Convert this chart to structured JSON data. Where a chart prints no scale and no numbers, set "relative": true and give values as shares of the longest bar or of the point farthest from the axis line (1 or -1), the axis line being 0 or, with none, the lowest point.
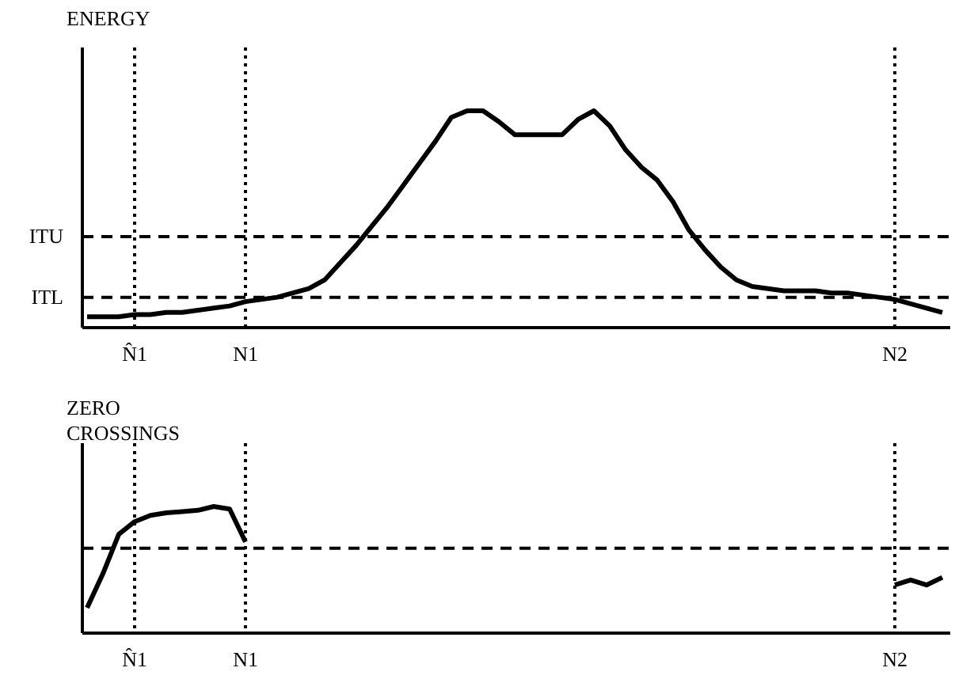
{
  "chart_data": [
    {
      "type": "line",
      "title": "ENERGY",
      "relative": true,
      "color": "#000000",
      "line_style": "solid",
      "marker": "none",
      "categories": [
        null,
        null,
        null,
        "N̂1",
        null,
        null,
        null,
        null,
        null,
        null,
        "N1",
        null,
        null,
        null,
        null,
        null,
        null,
        null,
        null,
        null,
        null,
        null,
        null,
        null,
        null,
        null,
        null,
        null,
        null,
        null,
        null,
        null,
        null,
        null,
        null,
        null,
        null,
        null,
        null,
        null,
        null,
        null,
        null,
        null,
        null,
        null,
        null,
        null,
        null,
        null,
        null,
        "N2",
        null,
        null,
        null
      ],
      "values": [
        0.05,
        0.05,
        0.05,
        0.06,
        0.06,
        0.07,
        0.07,
        0.08,
        0.09,
        0.1,
        0.12,
        0.13,
        0.14,
        0.16,
        0.18,
        0.22,
        0.3,
        0.38,
        0.47,
        0.56,
        0.66,
        0.76,
        0.86,
        0.97,
        1,
        1,
        0.95,
        0.89,
        0.89,
        0.89,
        0.89,
        0.96,
        1,
        0.93,
        0.82,
        0.74,
        0.68,
        0.58,
        0.45,
        0.36,
        0.28,
        0.22,
        0.19,
        0.18,
        0.17,
        0.17,
        0.17,
        0.16,
        0.16,
        0.15,
        0.14,
        0.13,
        0.11,
        0.09,
        0.07
      ],
      "ref_lines": [
        {
          "axis": "y",
          "value": 0.42,
          "label": "ITU",
          "line_style": "dashed"
        },
        {
          "axis": "y",
          "value": 0.14,
          "label": "ITL",
          "line_style": "dashed"
        },
        {
          "axis": "x",
          "value": "N̂1",
          "line_style": "dotted"
        },
        {
          "axis": "x",
          "value": "N1",
          "line_style": "dotted"
        },
        {
          "axis": "x",
          "value": "N2",
          "line_style": "dotted"
        }
      ]
    },
    {
      "type": "line",
      "title": "ZERO CROSSINGS",
      "relative": true,
      "color": "#000000",
      "line_style": "solid",
      "marker": "none",
      "categories": [
        null,
        null,
        null,
        "N̂1",
        null,
        null,
        null,
        null,
        null,
        null,
        "N1",
        null,
        null,
        null,
        null,
        null,
        null,
        null,
        null,
        null,
        null,
        null,
        null,
        null,
        null,
        null,
        null,
        null,
        null,
        null,
        null,
        null,
        null,
        null,
        null,
        null,
        null,
        null,
        null,
        null,
        null,
        null,
        null,
        null,
        null,
        null,
        null,
        null,
        null,
        null,
        null,
        "N2",
        null,
        null,
        null
      ],
      "values": [
        0.2,
        0.47,
        0.78,
        0.88,
        0.93,
        0.95,
        0.96,
        0.97,
        1,
        0.98,
        0.72,
        null,
        null,
        null,
        null,
        null,
        null,
        null,
        null,
        null,
        null,
        null,
        null,
        null,
        null,
        null,
        null,
        null,
        null,
        null,
        null,
        null,
        null,
        null,
        null,
        null,
        null,
        null,
        null,
        null,
        null,
        null,
        null,
        null,
        null,
        null,
        null,
        null,
        null,
        null,
        null,
        0.38,
        0.42,
        0.38,
        0.44
      ],
      "ref_lines": [
        {
          "axis": "y",
          "value": 0.67,
          "line_style": "dashed"
        },
        {
          "axis": "x",
          "value": "N̂1",
          "line_style": "dotted"
        },
        {
          "axis": "x",
          "value": "N1",
          "line_style": "dotted"
        },
        {
          "axis": "x",
          "value": "N2",
          "line_style": "dotted"
        }
      ]
    }
  ]
}
